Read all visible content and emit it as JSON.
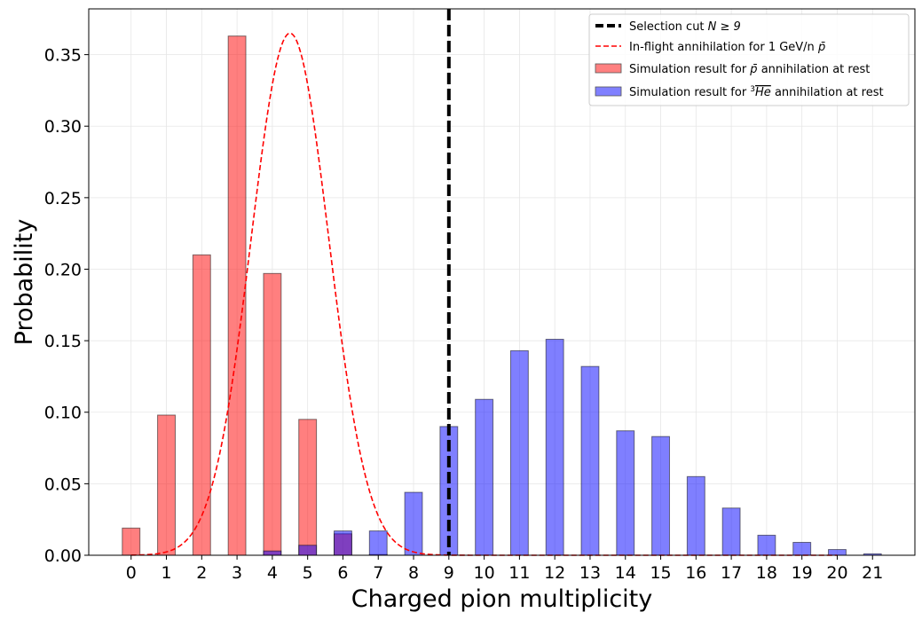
{
  "chart_data": {
    "type": "bar",
    "xlabel": "Charged pion multiplicity",
    "ylabel": "Probability",
    "xlim": [
      -1.2,
      22.2
    ],
    "ylim": [
      0,
      0.382
    ],
    "x_ticks": [
      0,
      1,
      2,
      3,
      4,
      5,
      6,
      7,
      8,
      9,
      10,
      11,
      12,
      13,
      14,
      15,
      16,
      17,
      18,
      19,
      20,
      21
    ],
    "y_ticks": [
      0.0,
      0.05,
      0.1,
      0.15,
      0.2,
      0.25,
      0.3,
      0.35
    ],
    "y_tick_labels": [
      "0.00",
      "0.05",
      "0.10",
      "0.15",
      "0.20",
      "0.25",
      "0.30",
      "0.35"
    ],
    "grid": true,
    "legend_position": "top-right",
    "series": [
      {
        "name": "Simulation result for p̄ annihilation at rest",
        "kind": "bar",
        "color": "#ff0000",
        "alpha": 0.5,
        "x": [
          0,
          1,
          2,
          3,
          4,
          5,
          6,
          7
        ],
        "values": [
          0.019,
          0.098,
          0.21,
          0.363,
          0.197,
          0.095,
          0.015,
          0.0005
        ]
      },
      {
        "name": "Simulation result for ³Hē annihilation at rest",
        "kind": "bar",
        "color": "#0000ff",
        "alpha": 0.5,
        "x": [
          4,
          5,
          6,
          7,
          8,
          9,
          10,
          11,
          12,
          13,
          14,
          15,
          16,
          17,
          18,
          19,
          20,
          21
        ],
        "values": [
          0.003,
          0.007,
          0.017,
          0.017,
          0.044,
          0.09,
          0.109,
          0.143,
          0.151,
          0.132,
          0.087,
          0.083,
          0.055,
          0.033,
          0.014,
          0.009,
          0.004,
          0.001
        ]
      },
      {
        "name": "In-flight annihilation for 1 GeV/n p̄",
        "kind": "line",
        "style": "dashed",
        "color": "#ff0000",
        "gaussian": {
          "mean": 4.5,
          "sigma": 1.1,
          "peak": 0.365
        },
        "x_range": [
          0,
          20
        ]
      }
    ],
    "vlines": [
      {
        "name": "Selection cut",
        "x": 9,
        "color": "#000000",
        "style": "dashed"
      }
    ],
    "legend": [
      {
        "key": "cut",
        "label_prefix": "Selection cut ",
        "label_math": "N ≥ 9",
        "marker": "thick-dashed-line",
        "color": "#000000"
      },
      {
        "key": "inflight",
        "label_prefix": "In-flight annihilation for 1 GeV/n ",
        "label_math": "p̄",
        "marker": "dashed-line",
        "color": "#ff0000"
      },
      {
        "key": "pbar",
        "label_prefix": "Simulation result for ",
        "label_math": "p̄",
        "label_suffix": " annihilation at rest",
        "marker": "patch",
        "color": "#ff8080"
      },
      {
        "key": "he3",
        "label_prefix": "Simulation result for ",
        "label_sup": "3",
        "label_math": "He",
        "label_suffix": " annihilation at rest",
        "marker": "patch",
        "color": "#8080ff"
      }
    ]
  }
}
